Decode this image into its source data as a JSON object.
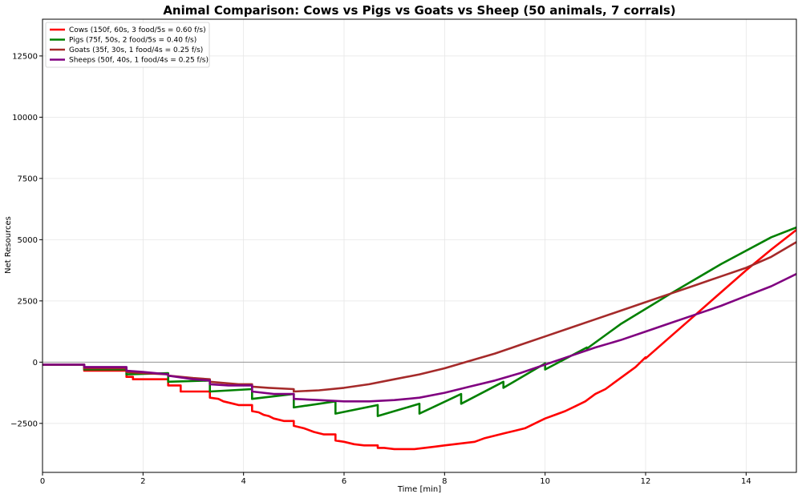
{
  "chart_data": {
    "type": "line",
    "title": "Animal Comparison: Cows vs Pigs vs Goats vs Sheep (50 animals, 7 corrals)",
    "xlabel": "Time [min]",
    "ylabel": "Net Resources",
    "xlim": [
      0,
      15
    ],
    "ylim": [
      -4500,
      14000
    ],
    "xticks": [
      0,
      2,
      4,
      6,
      8,
      10,
      12,
      14
    ],
    "xtick_labels": [
      "0",
      "2",
      "4",
      "6",
      "8",
      "10",
      "12",
      "14"
    ],
    "yticks": [
      -2500,
      0,
      2500,
      5000,
      7500,
      10000,
      12500
    ],
    "ytick_labels": [
      "−2500",
      "0",
      "2500",
      "5000",
      "7500",
      "10000",
      "12500"
    ],
    "grid": true,
    "zero_line": true,
    "legend_position": "top-left",
    "series": [
      {
        "name": "Cows (150f, 60s, 3 food/5s = 0.60 f/s)",
        "color": "#ff0000",
        "x": [
          0,
          0.83,
          0.83,
          1.67,
          1.67,
          1.8,
          1.8,
          2.5,
          2.5,
          2.75,
          2.75,
          3.33,
          3.33,
          3.5,
          3.6,
          3.7,
          3.8,
          3.9,
          4.17,
          4.17,
          4.3,
          4.4,
          4.5,
          4.6,
          4.7,
          4.8,
          5.0,
          5.0,
          5.2,
          5.4,
          5.6,
          5.83,
          5.83,
          6.0,
          6.2,
          6.4,
          6.67,
          6.67,
          6.8,
          7.0,
          7.2,
          7.4,
          7.6,
          7.8,
          8.0,
          8.2,
          8.4,
          8.6,
          8.8,
          9.0,
          9.2,
          9.4,
          9.6,
          9.8,
          10.0,
          10.2,
          10.4,
          10.6,
          10.8,
          11.0,
          11.2,
          11.5,
          11.8,
          12.0,
          12.0,
          12.5,
          13.0,
          13.5,
          14.0,
          14.5,
          15.0
        ],
        "y": [
          -100,
          -100,
          -350,
          -350,
          -600,
          -600,
          -700,
          -700,
          -950,
          -950,
          -1200,
          -1200,
          -1450,
          -1500,
          -1600,
          -1650,
          -1700,
          -1750,
          -1750,
          -2000,
          -2050,
          -2150,
          -2200,
          -2300,
          -2350,
          -2400,
          -2400,
          -2600,
          -2700,
          -2850,
          -2950,
          -2950,
          -3200,
          -3250,
          -3350,
          -3400,
          -3400,
          -3500,
          -3500,
          -3550,
          -3550,
          -3550,
          -3500,
          -3450,
          -3400,
          -3350,
          -3300,
          -3250,
          -3100,
          -3000,
          -2900,
          -2800,
          -2700,
          -2500,
          -2300,
          -2150,
          -2000,
          -1800,
          -1600,
          -1300,
          -1100,
          -650,
          -200,
          200,
          150,
          1050,
          1950,
          2850,
          3750,
          4600,
          5400
        ]
      },
      {
        "name": "Pigs (75f, 50s, 2 food/5s = 0.40 f/s)",
        "color": "#008000",
        "x": [
          0,
          0.83,
          0.83,
          1.67,
          1.67,
          2.5,
          2.5,
          3.33,
          3.33,
          4.17,
          4.17,
          5.0,
          5.0,
          5.83,
          5.83,
          6.67,
          6.67,
          7.5,
          7.5,
          8.33,
          8.33,
          9.17,
          9.17,
          10.0,
          10.0,
          10.83,
          10.83,
          11.5,
          12.5,
          13.5,
          14.5,
          15.0
        ],
        "y": [
          -100,
          -100,
          -300,
          -300,
          -500,
          -450,
          -800,
          -750,
          -1200,
          -1100,
          -1500,
          -1300,
          -1850,
          -1600,
          -2100,
          -1750,
          -2200,
          -1700,
          -2100,
          -1300,
          -1700,
          -800,
          -1050,
          -50,
          -300,
          600,
          550,
          1550,
          2800,
          4000,
          5100,
          5500
        ]
      },
      {
        "name": "Goats (35f, 30s, 1 food/4s = 0.25 f/s)",
        "color": "#a52a2a",
        "x": [
          0,
          0.83,
          0.83,
          1.67,
          1.67,
          2.0,
          2.5,
          2.5,
          3.0,
          3.33,
          3.33,
          3.6,
          3.9,
          4.17,
          4.17,
          4.5,
          5.0,
          5.0,
          5.5,
          6.0,
          6.5,
          7.0,
          7.5,
          8.0,
          8.5,
          9.0,
          9.5,
          10.0,
          10.5,
          11.0,
          11.5,
          12.0,
          12.5,
          13.0,
          13.5,
          14.0,
          14.5,
          15.0
        ],
        "y": [
          -100,
          -100,
          -250,
          -250,
          -400,
          -450,
          -500,
          -550,
          -650,
          -700,
          -800,
          -850,
          -900,
          -900,
          -1000,
          -1050,
          -1100,
          -1200,
          -1150,
          -1050,
          -900,
          -700,
          -500,
          -250,
          50,
          350,
          700,
          1050,
          1400,
          1750,
          2100,
          2450,
          2800,
          3150,
          3500,
          3850,
          4300,
          4900
        ]
      },
      {
        "name": "Sheeps (50f, 40s, 1 food/4s = 0.25 f/s)",
        "color": "#800080",
        "x": [
          0,
          0.83,
          0.83,
          1.67,
          1.67,
          2.0,
          2.5,
          2.5,
          3.0,
          3.33,
          3.33,
          3.7,
          4.17,
          4.17,
          4.6,
          5.0,
          5.0,
          5.5,
          6.0,
          6.5,
          7.0,
          7.5,
          8.0,
          8.5,
          9.0,
          9.5,
          10.0,
          10.5,
          11.0,
          11.5,
          12.0,
          12.5,
          13.0,
          13.5,
          14.0,
          14.5,
          15.0
        ],
        "y": [
          -100,
          -100,
          -200,
          -200,
          -350,
          -400,
          -500,
          -550,
          -700,
          -750,
          -900,
          -950,
          -950,
          -1200,
          -1300,
          -1300,
          -1500,
          -1550,
          -1600,
          -1600,
          -1550,
          -1450,
          -1250,
          -1000,
          -750,
          -450,
          -100,
          250,
          600,
          900,
          1250,
          1600,
          1950,
          2300,
          2700,
          3100,
          3600
        ]
      }
    ]
  }
}
